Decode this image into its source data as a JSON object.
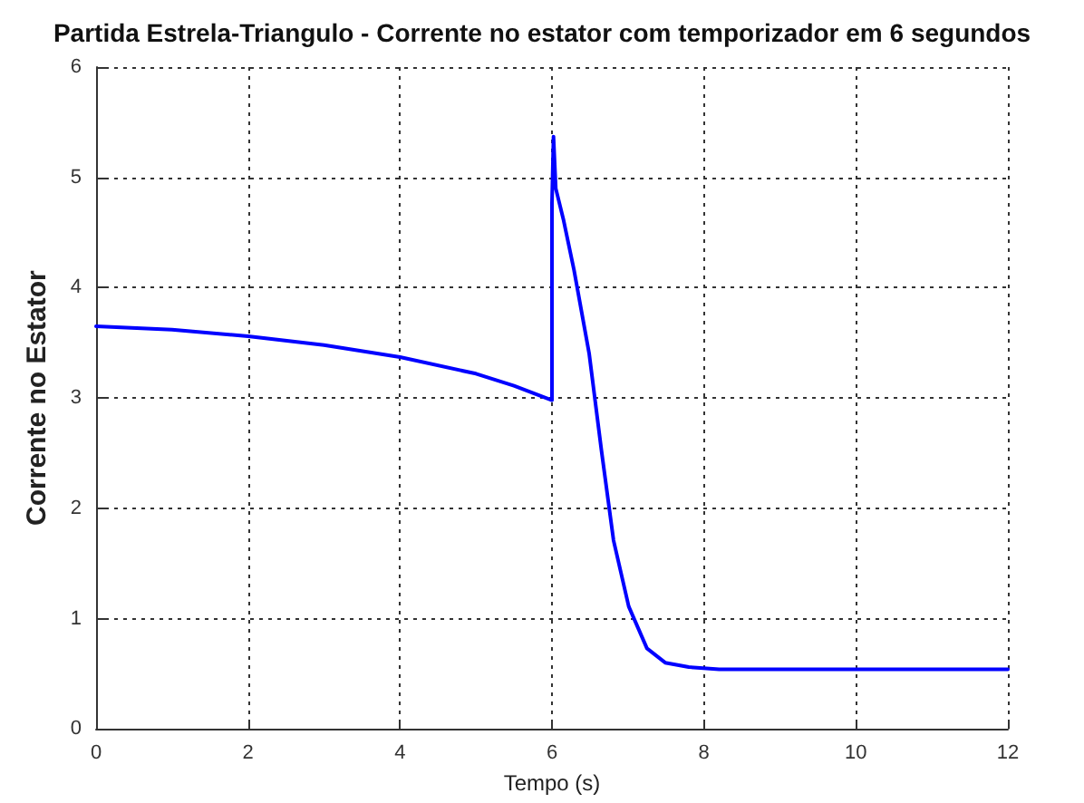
{
  "chart_data": {
    "type": "line",
    "title": "Partida Estrela-Triangulo - Corrente no estator com temporizador em 6 segundos",
    "xlabel": "Tempo (s)",
    "ylabel": "Corrente no Estator",
    "x": [
      0,
      1,
      2,
      3,
      4,
      5,
      5.5,
      6,
      6,
      6.02,
      6.05,
      6.15,
      6.29,
      6.49,
      6.65,
      6.81,
      7.01,
      7.25,
      7.49,
      7.8,
      8.2,
      9,
      10,
      11,
      12
    ],
    "series": [
      {
        "color": "#0000ff",
        "values": [
          3.65,
          3.62,
          3.56,
          3.48,
          3.37,
          3.22,
          3.11,
          2.98,
          4.76,
          5.37,
          4.9,
          4.62,
          4.16,
          3.4,
          2.53,
          1.71,
          1.11,
          0.73,
          0.6,
          0.56,
          0.54,
          0.54,
          0.54,
          0.54,
          0.54
        ]
      }
    ],
    "xlim": [
      0,
      12
    ],
    "xticks": [
      0,
      2,
      4,
      6,
      8,
      10,
      12
    ],
    "ylim": [
      0,
      6
    ],
    "yticks": [
      0,
      1,
      2,
      3,
      4,
      5,
      6
    ],
    "grid": true,
    "marker": "none",
    "line_style": "solid"
  }
}
